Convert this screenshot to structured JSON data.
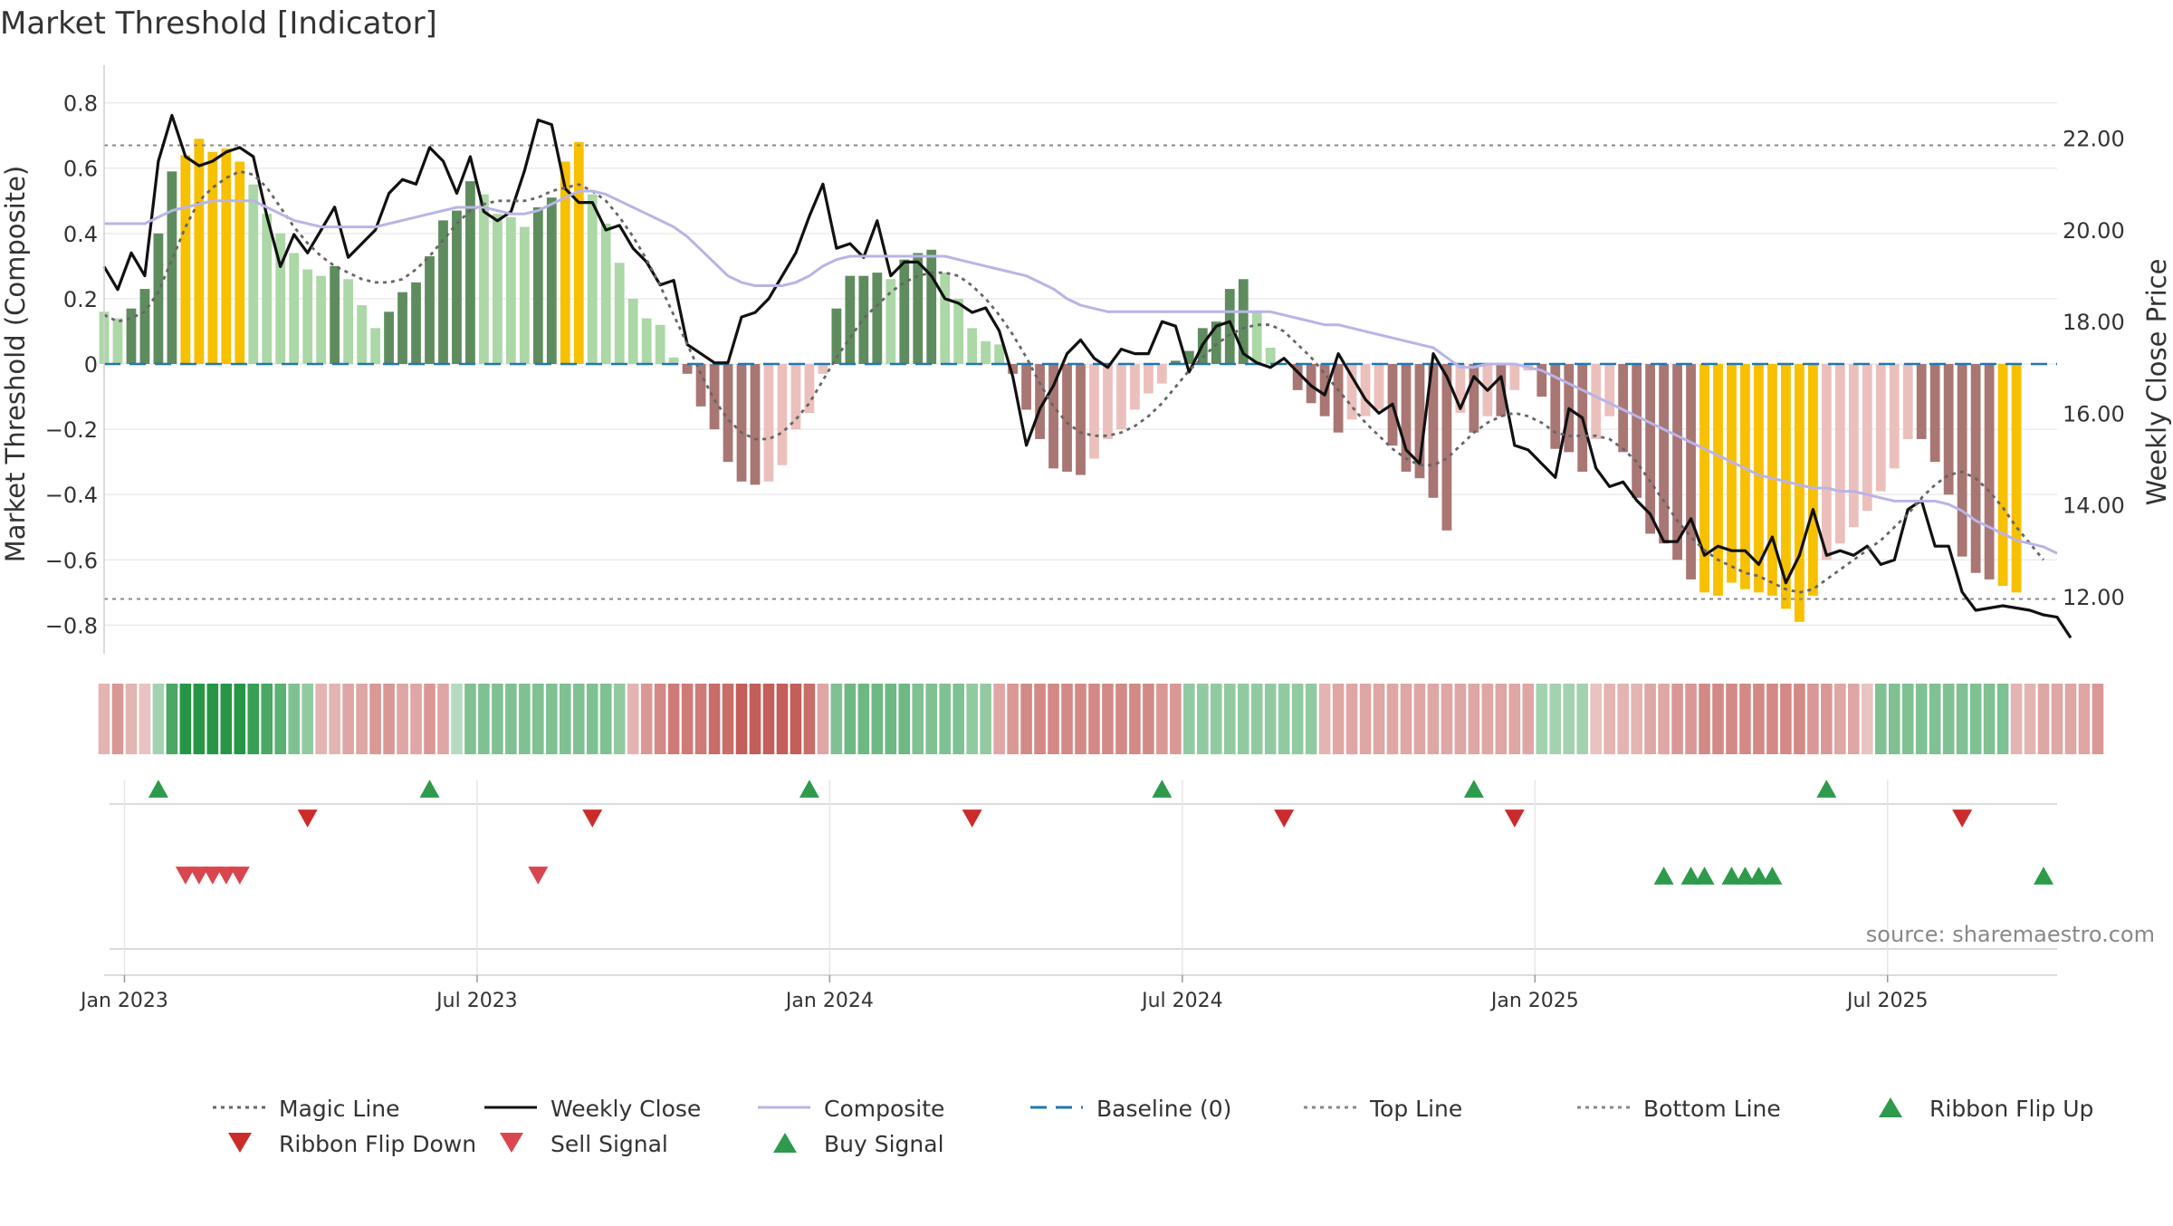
{
  "chart_data": {
    "type": "bar",
    "title": "Market Threshold [Indicator]",
    "ylabel_left": "Market Threshold (Composite)",
    "ylabel_right": "Weekly Close Price",
    "source": "source: sharemaestro.com",
    "xlim": [
      0,
      144
    ],
    "ylim_left": [
      -0.86,
      0.86
    ],
    "ylim_right": [
      10.95,
      23.2
    ],
    "yticks_left": [
      0.8,
      0.6,
      0.4,
      0.2,
      0,
      -0.2,
      -0.4,
      -0.6,
      -0.8
    ],
    "yticks_left_labels": [
      "0.8",
      "0.6",
      "0.4",
      "0.2",
      "0",
      "−0.2",
      "−0.4",
      "−0.6",
      "−0.8"
    ],
    "yticks_right": [
      22,
      20,
      18,
      16,
      14,
      12
    ],
    "yticks_right_labels": [
      "22.00",
      "20.00",
      "18.00",
      "16.00",
      "14.00",
      "12.00"
    ],
    "xticks": [
      1.5,
      27.5,
      53.5,
      79.5,
      105.5,
      131.5
    ],
    "xtick_labels": [
      "Jan 2023",
      "Jul 2023",
      "Jan 2024",
      "Jul 2024",
      "Jan 2025",
      "Jul 2025"
    ],
    "top_line": 0.67,
    "bottom_line": -0.72,
    "composite": [
      0.16,
      0.14,
      0.17,
      0.23,
      0.4,
      0.59,
      0.64,
      0.69,
      0.65,
      0.66,
      0.62,
      0.55,
      0.46,
      0.4,
      0.34,
      0.29,
      0.27,
      0.3,
      0.26,
      0.18,
      0.11,
      0.16,
      0.22,
      0.25,
      0.33,
      0.44,
      0.47,
      0.56,
      0.52,
      0.46,
      0.45,
      0.42,
      0.48,
      0.51,
      0.62,
      0.68,
      0.52,
      0.43,
      0.31,
      0.2,
      0.14,
      0.12,
      0.02,
      -0.03,
      -0.13,
      -0.2,
      -0.3,
      -0.36,
      -0.37,
      -0.36,
      -0.31,
      -0.2,
      -0.15,
      -0.03,
      0.17,
      0.27,
      0.27,
      0.28,
      0.26,
      0.32,
      0.34,
      0.35,
      0.28,
      0.2,
      0.11,
      0.07,
      0.06,
      -0.03,
      -0.14,
      -0.23,
      -0.32,
      -0.33,
      -0.34,
      -0.29,
      -0.23,
      -0.2,
      -0.14,
      -0.09,
      -0.06,
      0.01,
      0.04,
      0.11,
      0.13,
      0.23,
      0.26,
      0.16,
      0.05,
      0.0,
      -0.08,
      -0.12,
      -0.16,
      -0.21,
      -0.17,
      -0.16,
      -0.14,
      -0.25,
      -0.33,
      -0.35,
      -0.41,
      -0.51,
      -0.15,
      -0.21,
      -0.16,
      -0.16,
      -0.08,
      -0.02,
      -0.1,
      -0.26,
      -0.27,
      -0.33,
      -0.23,
      -0.16,
      -0.27,
      -0.41,
      -0.52,
      -0.55,
      -0.6,
      -0.66,
      -0.7,
      -0.71,
      -0.67,
      -0.69,
      -0.7,
      -0.71,
      -0.75,
      -0.79,
      -0.71,
      -0.6,
      -0.55,
      -0.5,
      -0.45,
      -0.39,
      -0.32,
      -0.23,
      -0.23,
      -0.3,
      -0.4,
      -0.59,
      -0.64,
      -0.66,
      -0.68,
      -0.7
    ],
    "ribbon": [
      -0.3,
      -0.5,
      -0.3,
      -0.2,
      0.3,
      0.8,
      1.0,
      1.0,
      1.0,
      1.0,
      1.0,
      0.9,
      0.8,
      0.7,
      0.5,
      0.4,
      -0.3,
      -0.3,
      -0.4,
      -0.4,
      -0.5,
      -0.5,
      -0.4,
      -0.4,
      -0.5,
      -0.4,
      0.2,
      0.5,
      0.5,
      0.5,
      0.5,
      0.5,
      0.5,
      0.5,
      0.5,
      0.5,
      0.5,
      0.5,
      0.4,
      -0.3,
      -0.5,
      -0.6,
      -0.7,
      -0.7,
      -0.7,
      -0.8,
      -0.8,
      -0.9,
      -0.9,
      -0.9,
      -0.9,
      -0.9,
      -0.8,
      -0.4,
      0.5,
      0.6,
      0.6,
      0.6,
      0.6,
      0.6,
      0.5,
      0.5,
      0.5,
      0.5,
      0.4,
      0.4,
      -0.4,
      -0.5,
      -0.6,
      -0.6,
      -0.6,
      -0.6,
      -0.6,
      -0.6,
      -0.6,
      -0.6,
      -0.6,
      -0.6,
      -0.5,
      -0.5,
      0.4,
      0.4,
      0.4,
      0.4,
      0.4,
      0.4,
      0.4,
      0.4,
      0.4,
      0.4,
      -0.3,
      -0.4,
      -0.4,
      -0.4,
      -0.4,
      -0.4,
      -0.4,
      -0.4,
      -0.4,
      -0.4,
      -0.4,
      -0.4,
      -0.4,
      -0.4,
      -0.4,
      -0.4,
      0.3,
      0.3,
      0.3,
      0.3,
      -0.2,
      -0.3,
      -0.3,
      -0.3,
      -0.4,
      -0.4,
      -0.5,
      -0.5,
      -0.6,
      -0.6,
      -0.6,
      -0.6,
      -0.6,
      -0.6,
      -0.6,
      -0.6,
      -0.5,
      -0.5,
      -0.4,
      -0.4,
      -0.2,
      0.5,
      0.5,
      0.5,
      0.5,
      0.5,
      0.5,
      0.5,
      0.5,
      0.5,
      0.5,
      -0.3,
      -0.3,
      -0.4,
      -0.4,
      -0.4,
      -0.4,
      -0.5
    ],
    "series": [
      {
        "name": "Weekly Close",
        "axis": "right",
        "color": "#111111",
        "values": [
          19.2,
          18.7,
          19.5,
          19.0,
          21.5,
          22.5,
          21.6,
          21.4,
          21.5,
          21.7,
          21.8,
          21.6,
          20.3,
          19.2,
          19.9,
          19.5,
          20.0,
          20.5,
          19.4,
          19.7,
          20.0,
          20.8,
          21.1,
          21.0,
          21.8,
          21.5,
          20.8,
          21.6,
          20.4,
          20.2,
          20.4,
          21.3,
          22.4,
          22.3,
          20.9,
          20.6,
          20.6,
          20.0,
          20.1,
          19.6,
          19.3,
          18.8,
          18.9,
          17.5,
          17.3,
          17.1,
          17.1,
          18.1,
          18.2,
          18.5,
          19.0,
          19.5,
          20.3,
          21.0,
          19.6,
          19.7,
          19.4,
          20.2,
          19.0,
          19.3,
          19.3,
          19.0,
          18.5,
          18.4,
          18.2,
          18.3,
          17.8,
          16.8,
          15.3,
          16.1,
          16.6,
          17.3,
          17.6,
          17.2,
          17.0,
          17.4,
          17.3,
          17.3,
          18.0,
          17.9,
          16.9,
          17.5,
          17.9,
          18.0,
          17.3,
          17.1,
          17.0,
          17.2,
          16.9,
          16.6,
          16.4,
          17.3,
          16.8,
          16.3,
          16.0,
          16.2,
          15.2,
          14.9,
          17.3,
          16.8,
          16.1,
          16.8,
          16.5,
          16.8,
          15.3,
          15.2,
          14.9,
          14.6,
          16.1,
          15.9,
          14.8,
          14.4,
          14.5,
          14.1,
          13.8,
          13.2,
          13.2,
          13.7,
          12.9,
          13.1,
          13.0,
          13.0,
          12.7,
          13.3,
          12.3,
          12.9,
          13.9,
          12.9,
          13.0,
          12.9,
          13.1,
          12.7,
          12.8,
          13.9,
          14.1,
          13.1,
          13.1,
          12.1,
          11.7,
          11.75,
          11.8,
          11.75,
          11.7,
          11.6,
          11.55,
          11.1
        ]
      },
      {
        "name": "Magic Line",
        "axis": "left",
        "color": "#666666",
        "values": [
          0.15,
          0.13,
          0.14,
          0.16,
          0.22,
          0.32,
          0.42,
          0.5,
          0.54,
          0.57,
          0.59,
          0.58,
          0.54,
          0.48,
          0.42,
          0.37,
          0.33,
          0.3,
          0.28,
          0.26,
          0.25,
          0.25,
          0.26,
          0.29,
          0.33,
          0.38,
          0.43,
          0.47,
          0.49,
          0.5,
          0.5,
          0.5,
          0.51,
          0.53,
          0.54,
          0.55,
          0.53,
          0.5,
          0.45,
          0.39,
          0.32,
          0.24,
          0.15,
          0.06,
          -0.03,
          -0.11,
          -0.17,
          -0.21,
          -0.23,
          -0.23,
          -0.21,
          -0.17,
          -0.12,
          -0.05,
          0.02,
          0.08,
          0.14,
          0.18,
          0.22,
          0.25,
          0.27,
          0.28,
          0.28,
          0.27,
          0.24,
          0.2,
          0.15,
          0.09,
          0.02,
          -0.06,
          -0.13,
          -0.18,
          -0.21,
          -0.22,
          -0.22,
          -0.21,
          -0.19,
          -0.16,
          -0.12,
          -0.07,
          -0.02,
          0.02,
          0.06,
          0.09,
          0.11,
          0.12,
          0.12,
          0.1,
          0.06,
          0.02,
          -0.03,
          -0.08,
          -0.13,
          -0.18,
          -0.22,
          -0.26,
          -0.29,
          -0.31,
          -0.31,
          -0.29,
          -0.25,
          -0.21,
          -0.18,
          -0.16,
          -0.15,
          -0.16,
          -0.18,
          -0.21,
          -0.22,
          -0.22,
          -0.22,
          -0.23,
          -0.26,
          -0.3,
          -0.36,
          -0.42,
          -0.48,
          -0.53,
          -0.57,
          -0.6,
          -0.62,
          -0.64,
          -0.65,
          -0.67,
          -0.69,
          -0.7,
          -0.69,
          -0.66,
          -0.63,
          -0.6,
          -0.57,
          -0.54,
          -0.5,
          -0.46,
          -0.41,
          -0.37,
          -0.34,
          -0.33,
          -0.35,
          -0.39,
          -0.44,
          -0.5,
          -0.55,
          -0.6
        ]
      },
      {
        "name": "Composite",
        "axis": "left",
        "color": "#b9b4e6",
        "values": [
          0.43,
          0.43,
          0.43,
          0.43,
          0.45,
          0.47,
          0.48,
          0.49,
          0.5,
          0.5,
          0.5,
          0.5,
          0.48,
          0.46,
          0.44,
          0.43,
          0.42,
          0.42,
          0.42,
          0.42,
          0.42,
          0.43,
          0.44,
          0.45,
          0.46,
          0.47,
          0.48,
          0.48,
          0.48,
          0.47,
          0.46,
          0.46,
          0.47,
          0.49,
          0.51,
          0.53,
          0.53,
          0.52,
          0.5,
          0.48,
          0.46,
          0.44,
          0.42,
          0.39,
          0.35,
          0.31,
          0.27,
          0.25,
          0.24,
          0.24,
          0.24,
          0.25,
          0.27,
          0.3,
          0.32,
          0.33,
          0.33,
          0.33,
          0.33,
          0.33,
          0.33,
          0.33,
          0.33,
          0.32,
          0.31,
          0.3,
          0.29,
          0.28,
          0.27,
          0.25,
          0.23,
          0.2,
          0.18,
          0.17,
          0.16,
          0.16,
          0.16,
          0.16,
          0.16,
          0.16,
          0.16,
          0.16,
          0.16,
          0.16,
          0.16,
          0.16,
          0.16,
          0.15,
          0.14,
          0.13,
          0.12,
          0.12,
          0.11,
          0.1,
          0.09,
          0.08,
          0.07,
          0.06,
          0.05,
          0.02,
          -0.01,
          -0.01,
          0.0,
          0.0,
          0.0,
          -0.01,
          -0.02,
          -0.04,
          -0.06,
          -0.08,
          -0.1,
          -0.12,
          -0.14,
          -0.16,
          -0.18,
          -0.2,
          -0.22,
          -0.24,
          -0.26,
          -0.28,
          -0.3,
          -0.32,
          -0.34,
          -0.35,
          -0.36,
          -0.37,
          -0.38,
          -0.38,
          -0.39,
          -0.39,
          -0.4,
          -0.41,
          -0.42,
          -0.42,
          -0.42,
          -0.42,
          -0.43,
          -0.45,
          -0.48,
          -0.5,
          -0.52,
          -0.54,
          -0.55,
          -0.56,
          -0.58
        ]
      }
    ],
    "signals": [
      {
        "name": "Ribbon Flip Up",
        "row": 1,
        "marker": "up",
        "color": "#2e9a4c",
        "x": [
          4,
          24,
          52,
          78,
          101,
          127
        ]
      },
      {
        "name": "Ribbon Flip Down",
        "row": 1,
        "marker": "down",
        "color": "#cc2b2b",
        "x": [
          15,
          36,
          64,
          87,
          104,
          137
        ]
      },
      {
        "name": "Sell Signal",
        "row": 2,
        "marker": "down",
        "color": "#d9464e",
        "x": [
          6,
          7,
          8,
          9,
          10,
          32
        ]
      },
      {
        "name": "Buy Signal",
        "row": 2,
        "marker": "up",
        "color": "#2e9a4c",
        "x": [
          115,
          117,
          118,
          120,
          121,
          122,
          123,
          143
        ]
      }
    ],
    "legend": [
      {
        "label": "Magic Line",
        "type": "dotted",
        "color": "#666666"
      },
      {
        "label": "Weekly Close",
        "type": "solid",
        "color": "#111111"
      },
      {
        "label": "Composite",
        "type": "solid",
        "color": "#b9b4e6"
      },
      {
        "label": "Baseline (0)",
        "type": "dashed",
        "color": "#1f77b4"
      },
      {
        "label": "Top Line",
        "type": "dotted",
        "color": "#888888"
      },
      {
        "label": "Bottom Line",
        "type": "dotted",
        "color": "#888888"
      },
      {
        "label": "Ribbon Flip Up",
        "type": "up",
        "color": "#2e9a4c"
      },
      {
        "label": "Ribbon Flip Down",
        "type": "down",
        "color": "#cc2b2b"
      },
      {
        "label": "Sell Signal",
        "type": "down",
        "color": "#d9464e"
      },
      {
        "label": "Buy Signal",
        "type": "up",
        "color": "#2e9a4c"
      }
    ],
    "bar_colors": {
      "strong_up": "#5e8c5e",
      "weak_up": "#acd7a6",
      "extreme": "#f7c000",
      "strong_down": "#a87673",
      "weak_down": "#ebc0bc"
    }
  }
}
